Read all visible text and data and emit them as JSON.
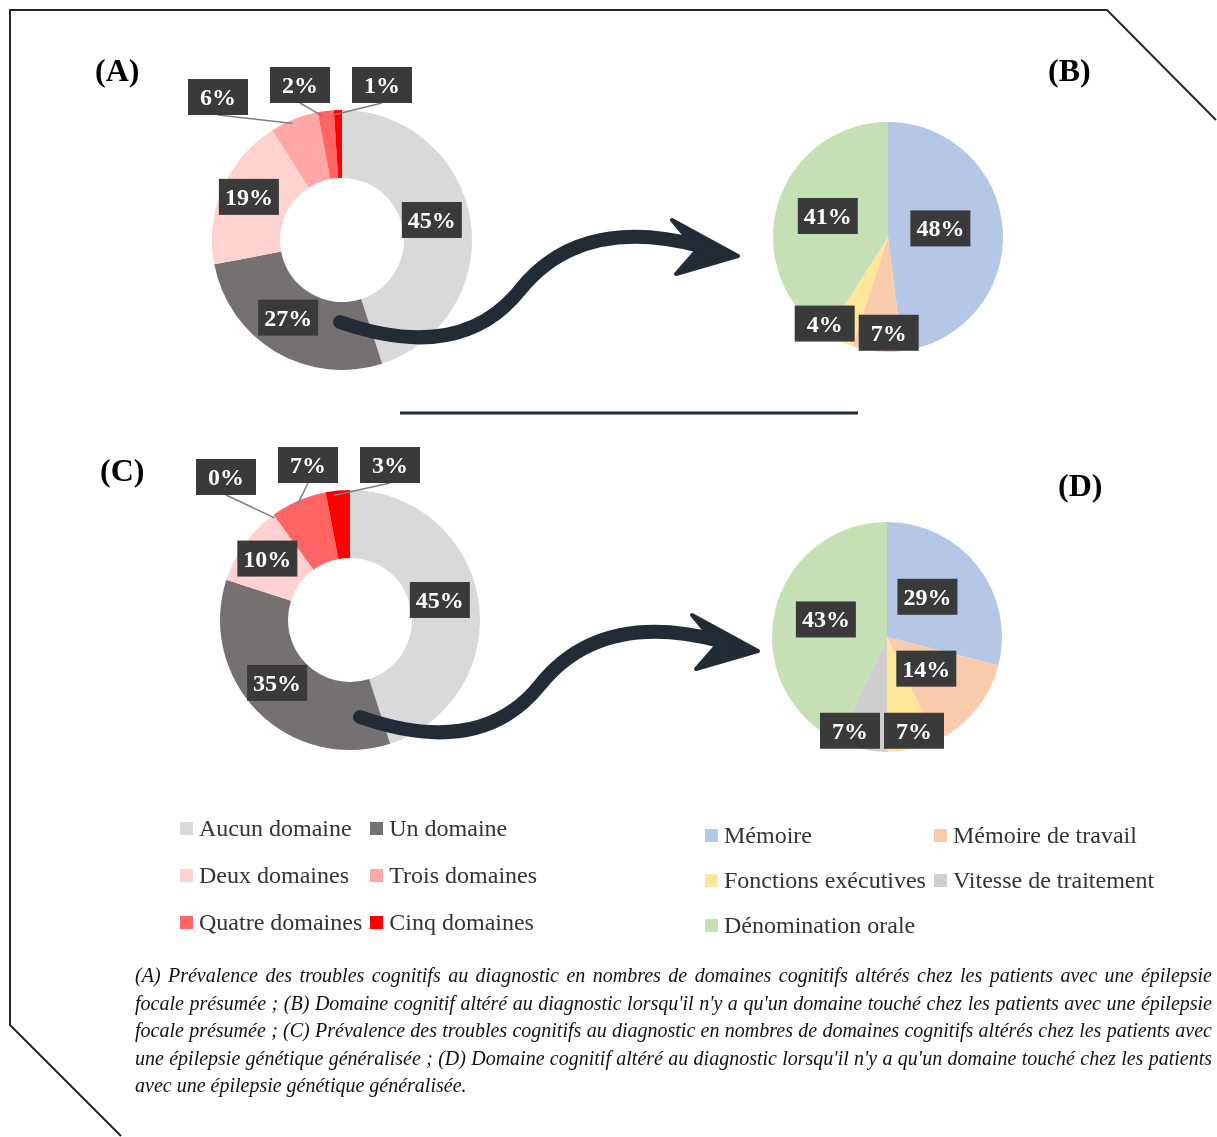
{
  "chart_data": [
    {
      "type": "donut",
      "title": "(A)",
      "categories": [
        null,
        null,
        null,
        null,
        null,
        null
      ],
      "values": [
        45,
        27,
        19,
        6,
        2,
        1
      ],
      "colors": [
        "#d9d9d9",
        "#767171",
        "#ffd1d1",
        "#ffa7a7",
        "#ff6565",
        "#ff0000"
      ],
      "value_labels": [
        "45%",
        "27%",
        "19%",
        "6%",
        "2%",
        "1%"
      ]
    },
    {
      "type": "pie",
      "title": "(B)",
      "categories": [
        null,
        null,
        null,
        null
      ],
      "values": [
        48,
        7,
        4,
        41
      ],
      "colors": [
        "#b4c7e7",
        "#f8cbad",
        "#ffe699",
        "#c5e0b4"
      ],
      "value_labels": [
        "48%",
        "7%",
        "4%",
        "41%"
      ]
    },
    {
      "type": "donut",
      "title": "(C)",
      "categories": [
        "Aucun domaine",
        "Un domaine",
        "Deux domaines",
        "Trois domaines",
        "Quatre domaines",
        "Cinq domaines"
      ],
      "values": [
        45,
        35,
        10,
        0,
        7,
        3
      ],
      "colors": [
        "#d9d9d9",
        "#767171",
        "#ffd1d1",
        "#ffa7a7",
        "#ff6565",
        "#ff0000"
      ],
      "value_labels": [
        "45%",
        "35%",
        "10%",
        "0%",
        "7%",
        "3%"
      ],
      "legend": "bottom"
    },
    {
      "type": "pie",
      "title": "(D)",
      "categories": [
        "Mémoire",
        "Mémoire de travail",
        "Fonctions exécutives",
        "Vitesse de traitement",
        "Dénomination orale"
      ],
      "values": [
        29,
        14,
        7,
        7,
        43
      ],
      "colors": [
        "#b4c7e7",
        "#f8cbad",
        "#ffe699",
        "#d0cece",
        "#c5e0b4"
      ],
      "value_labels": [
        "29%",
        "14%",
        "7%",
        "7%",
        "43%"
      ],
      "legend": "bottom",
      "annotations": [
        "(A) Prévalence des troubles cognitifs au diagnostic en nombres de domaines cognitifs altérés chez les patients avec une épilepsie focale présumée ; (B) Domaine cognitif altéré au diagnostic lorsqu'il n'y a qu'un domaine touché chez les patients avec une épilepsie focale présumée ; (C) Prévalence des troubles cognitifs au diagnostic en nombres de domaines cognitifs altérés chez les patients avec une épilepsie génétique généralisée ; (D) Domaine cognitif altéré au diagnostic lorsqu'il n'y a qu'un domaine touché chez les patients avec une épilepsie génétique généralisée."
      ]
    }
  ]
}
